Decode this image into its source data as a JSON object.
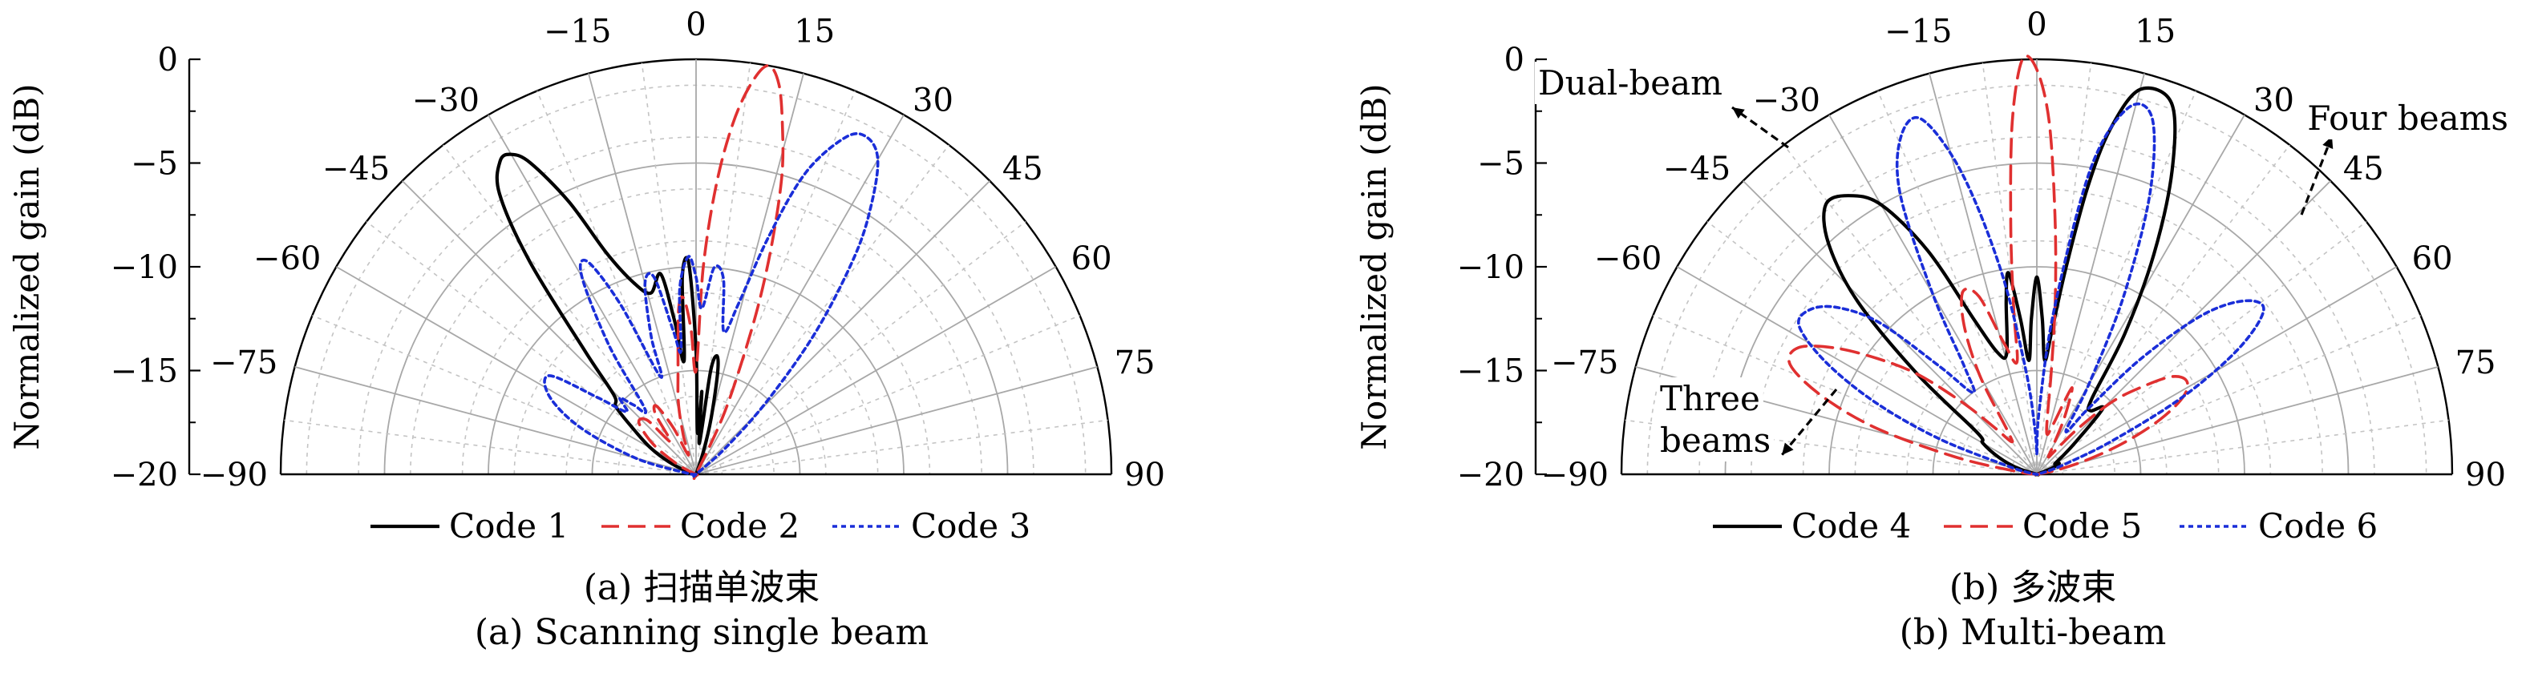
{
  "chart_data": [
    {
      "type": "polar",
      "panel": "a",
      "ylabel": "Normalized gain (dB)",
      "angle_ticks": [
        -90,
        -75,
        -60,
        -45,
        -30,
        -15,
        0,
        15,
        30,
        45,
        60,
        75,
        90
      ],
      "radial_ticks": [
        0,
        -5,
        -10,
        -15,
        -20
      ],
      "rlim": [
        -20,
        0
      ],
      "grid": true,
      "legend": "bottom",
      "series": [
        {
          "name": "Code 1",
          "color": "#000000",
          "dash": "solid",
          "theta": [
            -90,
            -80,
            -72,
            -65,
            -60,
            -55,
            -50,
            -46,
            -42,
            -38,
            -35,
            -32,
            -30,
            -28,
            -25,
            -22,
            -18,
            -14,
            -10,
            -8,
            -6,
            -4,
            -2,
            0,
            2,
            4,
            6,
            8,
            10,
            12,
            15,
            18,
            22,
            25,
            28,
            32,
            40,
            50,
            60,
            70,
            80,
            90
          ],
          "gain": [
            -20,
            -20,
            -19.5,
            -18.5,
            -17.5,
            -16.5,
            -15,
            -14.5,
            -12,
            -7,
            -3.5,
            -2.2,
            -2.2,
            -3,
            -5.5,
            -8.5,
            -10.3,
            -11,
            -10.2,
            -12.5,
            -14.5,
            -10.5,
            -9.8,
            -14,
            -18,
            -16,
            -18.5,
            -15,
            -14.2,
            -15,
            -17.2,
            -18.8,
            -20,
            -20,
            -20,
            -20,
            -20,
            -20,
            -20,
            -20,
            -20,
            -20
          ]
        },
        {
          "name": "Code 2",
          "color": "#e03030",
          "dash": "dashed",
          "theta": [
            -90,
            -80,
            -70,
            -62,
            -55,
            -48,
            -42,
            -38,
            -34,
            -30,
            -26,
            -22,
            -18,
            -14,
            -10,
            -6,
            -4,
            -2,
            0,
            2,
            4,
            6,
            8,
            10,
            12,
            14,
            16,
            18,
            20,
            22,
            25,
            30,
            40,
            50,
            60,
            70,
            80,
            90
          ],
          "gain": [
            -20,
            -20,
            -20,
            -19,
            -17.5,
            -16.3,
            -16.5,
            -18,
            -16.5,
            -16.2,
            -17.5,
            -19,
            -18,
            -16.5,
            -15,
            -12,
            -11.5,
            -13,
            -15,
            -10,
            -6,
            -3,
            -1,
            0,
            -0.8,
            -2.8,
            -5,
            -8,
            -11,
            -14,
            -17,
            -20,
            -20,
            -20,
            -20,
            -20,
            -20,
            -20
          ]
        },
        {
          "name": "Code 3",
          "color": "#1a2ed8",
          "dash": "dotted",
          "theta": [
            -90,
            -82,
            -75,
            -68,
            -62,
            -56,
            -52,
            -48,
            -45,
            -42,
            -38,
            -34,
            -30,
            -27,
            -24,
            -20,
            -18,
            -15,
            -12,
            -9,
            -7,
            -5,
            -2,
            0,
            2,
            5,
            8,
            11,
            14,
            17,
            20,
            24,
            27,
            30,
            33,
            36,
            40,
            44,
            48,
            55,
            65,
            75,
            90
          ],
          "gain": [
            -20,
            -19.5,
            -17,
            -14,
            -12,
            -11.5,
            -14,
            -15.5,
            -14.8,
            -15.5,
            -16,
            -12.5,
            -9,
            -8.5,
            -11,
            -15,
            -13,
            -10.5,
            -10.3,
            -13,
            -14,
            -11,
            -9.5,
            -10.5,
            -12,
            -10,
            -10.5,
            -13,
            -11.5,
            -8,
            -4.5,
            -2.2,
            -1.8,
            -2.5,
            -4.5,
            -7,
            -11,
            -15,
            -18,
            -20,
            -20,
            -20,
            -20
          ]
        }
      ]
    },
    {
      "type": "polar",
      "panel": "b",
      "ylabel": "Normalized gain (dB)",
      "angle_ticks": [
        -90,
        -75,
        -60,
        -45,
        -30,
        -15,
        0,
        15,
        30,
        45,
        60,
        75,
        90
      ],
      "radial_ticks": [
        0,
        -5,
        -10,
        -15,
        -20
      ],
      "rlim": [
        -20,
        0
      ],
      "grid": true,
      "legend": "bottom",
      "annotations": [
        "Dual-beam",
        "Four beams",
        "Three",
        "beams"
      ],
      "series": [
        {
          "name": "Code 4",
          "color": "#000000",
          "dash": "solid",
          "theta": [
            -90,
            -80,
            -72,
            -66,
            -60,
            -55,
            -50,
            -46,
            -42,
            -38,
            -34,
            -30,
            -26,
            -22,
            -18,
            -14,
            -10,
            -8,
            -6,
            -4,
            -2,
            0,
            2,
            4,
            6,
            8,
            10,
            12,
            15,
            20,
            24,
            28,
            32,
            36,
            40,
            45,
            50,
            55,
            60,
            64,
            68,
            72,
            78,
            84,
            90
          ],
          "gain": [
            -20,
            -20,
            -19,
            -18,
            -17,
            -16.5,
            -12.5,
            -8,
            -5,
            -3.5,
            -3.8,
            -5,
            -8,
            -12,
            -13.8,
            -14,
            -11.5,
            -10.2,
            -12.5,
            -14.5,
            -12.5,
            -10.5,
            -12.5,
            -14.5,
            -13,
            -10,
            -6,
            -3,
            -0.8,
            -1,
            -4,
            -8,
            -12,
            -15.5,
            -16,
            -15.5,
            -17.5,
            -18.5,
            -19,
            -18.8,
            -19.2,
            -20,
            -20,
            -20,
            -20
          ]
        },
        {
          "name": "Code 5",
          "color": "#e03030",
          "dash": "dashed",
          "theta": [
            -90,
            -86,
            -82,
            -78,
            -74,
            -70,
            -66,
            -62,
            -58,
            -54,
            -50,
            -46,
            -42,
            -38,
            -34,
            -30,
            -26,
            -22,
            -18,
            -14,
            -10,
            -8,
            -6,
            -4,
            -2,
            0,
            2,
            4,
            6,
            8,
            10,
            14,
            18,
            22,
            26,
            30,
            34,
            38,
            42,
            46,
            50,
            54,
            58,
            62,
            66,
            70,
            74,
            78,
            82,
            86,
            90
          ],
          "gain": [
            -20,
            -20,
            -19,
            -16,
            -12,
            -9,
            -7,
            -7,
            -8.5,
            -10.5,
            -12.5,
            -15,
            -17,
            -18,
            -17.5,
            -14.5,
            -12,
            -10.5,
            -11,
            -13.5,
            -14.5,
            -12,
            -8,
            -3,
            0,
            -0.5,
            -3,
            -7.5,
            -11.5,
            -15,
            -17,
            -18,
            -17.5,
            -15.5,
            -17,
            -18.5,
            -19,
            -18.5,
            -17,
            -15,
            -13.5,
            -12,
            -11.5,
            -12,
            -13.5,
            -15.5,
            -17.5,
            -19,
            -20,
            -20,
            -20
          ]
        },
        {
          "name": "Code 6",
          "color": "#1a2ed8",
          "dash": "dotted",
          "theta": [
            -90,
            -86,
            -82,
            -78,
            -74,
            -70,
            -66,
            -62,
            -58,
            -54,
            -50,
            -46,
            -42,
            -38,
            -34,
            -30,
            -26,
            -22,
            -18,
            -14,
            -10,
            -6,
            -2,
            0,
            2,
            6,
            10,
            14,
            18,
            22,
            26,
            30,
            34,
            38,
            42,
            46,
            50,
            54,
            58,
            62,
            66,
            70,
            74,
            78,
            82,
            86,
            90
          ],
          "gain": [
            -20,
            -20,
            -20,
            -19.5,
            -18.5,
            -15,
            -11.5,
            -8.5,
            -6.5,
            -6.5,
            -7.5,
            -9.5,
            -13,
            -15,
            -13.8,
            -10,
            -5,
            -2.5,
            -2,
            -5,
            -10,
            -15,
            -18,
            -19,
            -17,
            -12,
            -5,
            -1.8,
            -2,
            -5.5,
            -10.5,
            -15,
            -17.5,
            -16,
            -12.5,
            -9,
            -7,
            -6.5,
            -8.5,
            -12,
            -16,
            -18.5,
            -19.5,
            -20,
            -20,
            -20,
            -20
          ]
        }
      ]
    }
  ],
  "captions": {
    "a_cn": "(a) 扫描单波束",
    "a_en": "(a) Scanning single beam",
    "b_cn": "(b) 多波束",
    "b_en": "(b) Multi-beam"
  }
}
